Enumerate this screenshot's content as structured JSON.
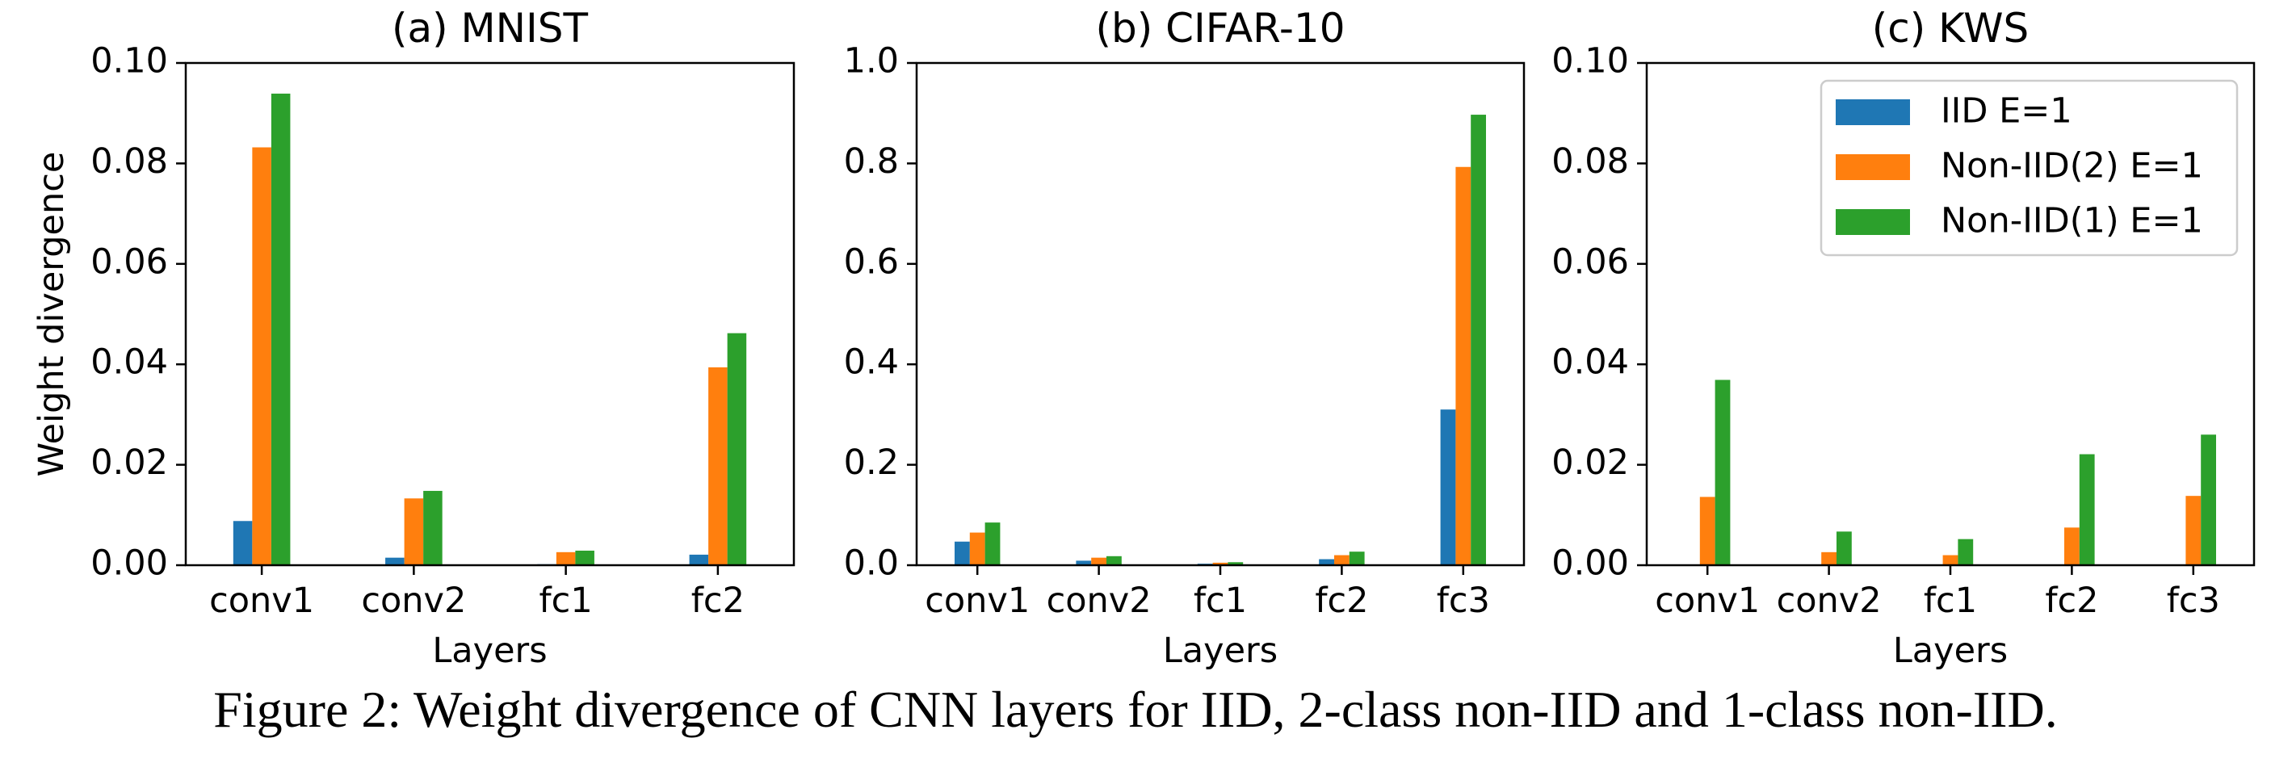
{
  "caption": "Figure 2: Weight divergence of CNN layers for IID, 2-class non-IID and 1-class non-IID.",
  "colors": {
    "iid": "#1f77b4",
    "noniid2": "#ff7f0e",
    "noniid1": "#2ca02c"
  },
  "legend": {
    "location": "upper right",
    "entries": [
      "IID E=1",
      "Non-IID(2) E=1",
      "Non-IID(1) E=1"
    ]
  },
  "chart_data": [
    {
      "type": "bar",
      "title": "(a) MNIST",
      "xlabel": "Layers",
      "ylabel": "Weight divergence",
      "ylim": [
        0,
        0.1
      ],
      "yticks": [
        "0.00",
        "0.02",
        "0.04",
        "0.06",
        "0.08",
        "0.10"
      ],
      "categories": [
        "conv1",
        "conv2",
        "fc1",
        "fc2"
      ],
      "series": [
        {
          "name": "IID E=1",
          "color": "#1f77b4",
          "values": [
            0.0088,
            0.0015,
            0.0002,
            0.0021
          ]
        },
        {
          "name": "Non-IID(2) E=1",
          "color": "#ff7f0e",
          "values": [
            0.0832,
            0.0133,
            0.0026,
            0.0394
          ]
        },
        {
          "name": "Non-IID(1) E=1",
          "color": "#2ca02c",
          "values": [
            0.0939,
            0.0148,
            0.0029,
            0.0462
          ]
        }
      ]
    },
    {
      "type": "bar",
      "title": "(b) CIFAR-10",
      "xlabel": "Layers",
      "ylabel": "",
      "ylim": [
        0,
        1.0
      ],
      "yticks": [
        "0.0",
        "0.2",
        "0.4",
        "0.6",
        "0.8",
        "1.0"
      ],
      "categories": [
        "conv1",
        "conv2",
        "fc1",
        "fc2",
        "fc3"
      ],
      "series": [
        {
          "name": "IID E=1",
          "color": "#1f77b4",
          "values": [
            0.047,
            0.009,
            0.003,
            0.012,
            0.31
          ]
        },
        {
          "name": "Non-IID(2) E=1",
          "color": "#ff7f0e",
          "values": [
            0.065,
            0.015,
            0.005,
            0.02,
            0.793
          ]
        },
        {
          "name": "Non-IID(1) E=1",
          "color": "#2ca02c",
          "values": [
            0.085,
            0.018,
            0.006,
            0.027,
            0.897
          ]
        }
      ]
    },
    {
      "type": "bar",
      "title": "(c) KWS",
      "xlabel": "Layers",
      "ylabel": "",
      "ylim": [
        0,
        0.1
      ],
      "yticks": [
        "0.00",
        "0.02",
        "0.04",
        "0.06",
        "0.08",
        "0.10"
      ],
      "categories": [
        "conv1",
        "conv2",
        "fc1",
        "fc2",
        "fc3"
      ],
      "series": [
        {
          "name": "IID E=1",
          "color": "#1f77b4",
          "values": [
            0.0001,
            0.0001,
            0.0001,
            0.0001,
            0.0001
          ]
        },
        {
          "name": "Non-IID(2) E=1",
          "color": "#ff7f0e",
          "values": [
            0.0136,
            0.0026,
            0.002,
            0.0075,
            0.0138
          ]
        },
        {
          "name": "Non-IID(1) E=1",
          "color": "#2ca02c",
          "values": [
            0.0369,
            0.0067,
            0.0052,
            0.0221,
            0.026
          ]
        }
      ]
    }
  ]
}
